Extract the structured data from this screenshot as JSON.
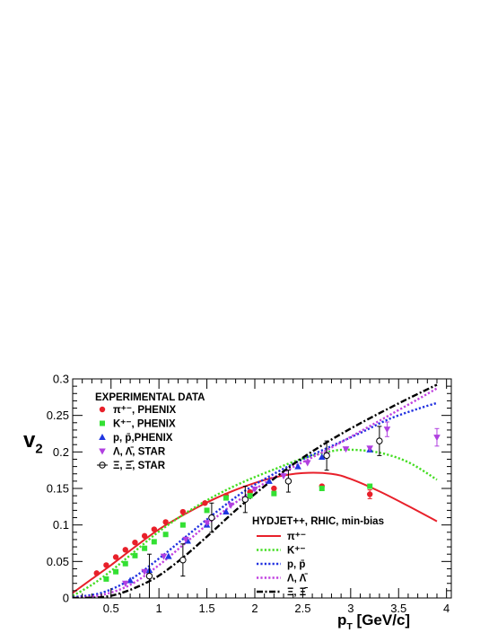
{
  "chart_data": {
    "type": "scatter",
    "xlabel": "p_T [GeV/c]",
    "ylabel": "v_2",
    "xlim": [
      0.1,
      4.05
    ],
    "ylim": [
      0,
      0.3
    ],
    "x_ticks": [
      0.5,
      1,
      1.5,
      2,
      2.5,
      3,
      3.5,
      4
    ],
    "x_tick_labels": [
      "0.5",
      "1",
      "1.5",
      "2",
      "2.5",
      "3",
      "3.5",
      "4"
    ],
    "y_ticks": [
      0,
      0.05,
      0.1,
      0.15,
      0.2,
      0.25,
      0.3
    ],
    "y_tick_labels": [
      "0",
      "0.05",
      "0.1",
      "0.15",
      "0.2",
      "0.25",
      "0.3"
    ],
    "grid": false,
    "data_legend": {
      "title": "EXPERIMENTAL DATA",
      "placement": "top-left",
      "entries": [
        {
          "label": "π⁺⁻, PHENIX",
          "series": 0
        },
        {
          "label": "K⁺⁻, PHENIX",
          "series": 1
        },
        {
          "label": "p, p̄,PHENIX",
          "series": 2
        },
        {
          "label": "Λ, Λ̄, STAR",
          "series": 3
        },
        {
          "label": "Ξ, Ξ̄, STAR",
          "series": 4
        }
      ]
    },
    "model_legend": {
      "title": "HYDJET++, RHIC, min-bias",
      "placement": "bottom-right",
      "entries": [
        {
          "label": "π⁺⁻",
          "curve": 0
        },
        {
          "label": "K⁺⁻",
          "curve": 1
        },
        {
          "label": "p, p̄",
          "curve": 2
        },
        {
          "label": "Λ, Λ̄",
          "curve": 3
        },
        {
          "label": "Ξ, Ξ̄",
          "curve": 4
        }
      ]
    },
    "series": [
      {
        "marker": "circle",
        "color": "#e8202a",
        "x": [
          0.35,
          0.45,
          0.55,
          0.65,
          0.75,
          0.85,
          0.95,
          1.07,
          1.25,
          1.48,
          1.7,
          1.95,
          2.2,
          2.7,
          3.2
        ],
        "y": [
          0.034,
          0.045,
          0.056,
          0.066,
          0.076,
          0.085,
          0.094,
          0.104,
          0.118,
          0.13,
          0.14,
          0.145,
          0.15,
          0.153,
          0.142
        ],
        "err": [
          0,
          0,
          0,
          0,
          0,
          0,
          0,
          0,
          0,
          0,
          0,
          0,
          0,
          0,
          0.006
        ]
      },
      {
        "marker": "square",
        "color": "#33e033",
        "x": [
          0.45,
          0.55,
          0.65,
          0.75,
          0.85,
          0.95,
          1.07,
          1.25,
          1.5,
          1.7,
          1.95,
          2.2,
          2.7,
          3.2
        ],
        "y": [
          0.026,
          0.036,
          0.047,
          0.058,
          0.068,
          0.077,
          0.087,
          0.1,
          0.12,
          0.137,
          0.14,
          0.143,
          0.15,
          0.153
        ],
        "err": [
          0,
          0,
          0,
          0,
          0,
          0,
          0,
          0,
          0,
          0,
          0,
          0,
          0,
          0
        ]
      },
      {
        "marker": "triangle-up",
        "color": "#2036e0",
        "x": [
          0.7,
          0.9,
          1.1,
          1.3,
          1.5,
          1.7,
          1.9,
          2.15,
          2.45,
          2.7,
          3.2
        ],
        "y": [
          0.024,
          0.038,
          0.057,
          0.078,
          0.1,
          0.118,
          0.137,
          0.16,
          0.18,
          0.193,
          0.203
        ],
        "err": [
          0,
          0,
          0,
          0,
          0,
          0,
          0,
          0,
          0,
          0,
          0
        ]
      },
      {
        "marker": "triangle-down",
        "color": "#b040e0",
        "x": [
          0.65,
          0.85,
          1.05,
          1.28,
          1.5,
          1.75,
          2.0,
          2.3,
          2.55,
          2.75,
          2.95,
          3.2,
          3.38,
          3.9
        ],
        "y": [
          0.02,
          0.036,
          0.057,
          0.08,
          0.103,
          0.127,
          0.149,
          0.167,
          0.185,
          0.196,
          0.204,
          0.205,
          0.231,
          0.22
        ],
        "err": [
          0,
          0,
          0,
          0,
          0,
          0,
          0,
          0,
          0,
          0,
          0,
          0,
          0.01,
          0.012
        ]
      },
      {
        "marker": "open-circle",
        "color": "#000000",
        "x": [
          0.9,
          1.25,
          1.55,
          1.9,
          2.35,
          2.75,
          3.3
        ],
        "y": [
          0.03,
          0.052,
          0.11,
          0.135,
          0.16,
          0.195,
          0.215
        ],
        "err": [
          0.03,
          0.022,
          0.02,
          0.018,
          0.015,
          0.02,
          0.02
        ]
      }
    ],
    "curves": [
      {
        "color": "#e8202a",
        "style": "solid",
        "x": [
          0.1,
          0.3,
          0.5,
          0.75,
          1.0,
          1.3,
          1.6,
          1.9,
          2.2,
          2.5,
          2.8,
          3.0,
          3.3,
          3.6,
          3.9
        ],
        "y": [
          0.007,
          0.026,
          0.045,
          0.07,
          0.094,
          0.117,
          0.137,
          0.153,
          0.165,
          0.171,
          0.17,
          0.163,
          0.146,
          0.126,
          0.105
        ]
      },
      {
        "color": "#44dd22",
        "style": "dotted",
        "x": [
          0.1,
          0.3,
          0.5,
          0.75,
          1.0,
          1.3,
          1.6,
          1.9,
          2.2,
          2.5,
          2.8,
          3.0,
          3.3,
          3.6,
          3.9
        ],
        "y": [
          0.003,
          0.018,
          0.037,
          0.064,
          0.091,
          0.118,
          0.141,
          0.16,
          0.176,
          0.191,
          0.201,
          0.203,
          0.199,
          0.186,
          0.162
        ]
      },
      {
        "color": "#2030e0",
        "style": "dotted",
        "x": [
          0.1,
          0.4,
          0.7,
          1.0,
          1.3,
          1.6,
          1.9,
          2.2,
          2.5,
          2.8,
          3.1,
          3.4,
          3.7,
          3.9
        ],
        "y": [
          0.001,
          0.007,
          0.025,
          0.054,
          0.086,
          0.118,
          0.147,
          0.17,
          0.19,
          0.208,
          0.226,
          0.245,
          0.259,
          0.267
        ]
      },
      {
        "color": "#c040e0",
        "style": "dotted",
        "x": [
          0.1,
          0.4,
          0.7,
          1.0,
          1.3,
          1.6,
          1.9,
          2.2,
          2.5,
          2.8,
          3.1,
          3.4,
          3.7,
          3.9
        ],
        "y": [
          0.0,
          0.004,
          0.018,
          0.045,
          0.078,
          0.111,
          0.14,
          0.165,
          0.186,
          0.206,
          0.228,
          0.25,
          0.272,
          0.287
        ]
      },
      {
        "color": "#000000",
        "style": "dashdot",
        "x": [
          0.1,
          0.5,
          0.9,
          1.2,
          1.5,
          1.8,
          2.1,
          2.4,
          2.7,
          3.0,
          3.3,
          3.6,
          3.9
        ],
        "y": [
          0.0,
          0.003,
          0.023,
          0.05,
          0.084,
          0.12,
          0.153,
          0.183,
          0.209,
          0.232,
          0.253,
          0.273,
          0.292
        ]
      }
    ]
  }
}
